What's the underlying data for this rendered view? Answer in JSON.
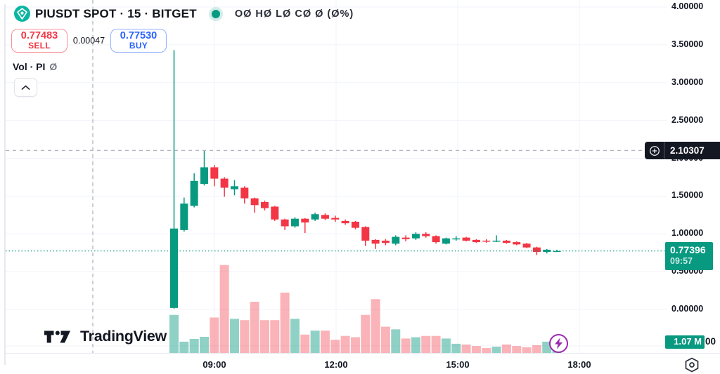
{
  "header": {
    "symbol_title": "PIUSDT SPOT · 15 · BITGET",
    "ohlc_legend": "OØ HØ LØ CØ Ø (Ø%)",
    "sell_button": {
      "price": "0.77483",
      "label": "SELL"
    },
    "spread": "0.00047",
    "buy_button": {
      "price": "0.77530",
      "label": "BUY"
    },
    "volume_row": {
      "label": "Vol · PI",
      "value": "Ø"
    }
  },
  "price_axis": {
    "labels": [
      "4.00000",
      "3.50000",
      "3.00000",
      "2.50000",
      "2.00000",
      "1.50000",
      "1.00000",
      "0.50000",
      "0.00000"
    ],
    "crosshair_label": "2.10307",
    "last_price_label": {
      "price": "0.77396",
      "countdown": "09:57"
    },
    "volume_label": "1.07 M",
    "partial_text": "00"
  },
  "time_axis": {
    "labels": [
      "09:00",
      "12:00",
      "15:00",
      "18:00"
    ]
  },
  "branding": {
    "logo_text": "TradingView"
  },
  "colors": {
    "up": "#089981",
    "down": "#f23645",
    "vol_up": "rgba(8,153,129,0.45)",
    "vol_down": "rgba(242,54,69,0.38)",
    "buy_accent": "#2962ff",
    "sell_accent": "#f23645",
    "dark_label_bg": "#131722",
    "grid": "#f0f3fa",
    "crosshair": "#b2b5be",
    "flash_purple": "#9c27b0"
  },
  "chart_data": {
    "type": "candlestick",
    "title": "PIUSDT SPOT · 15 · BITGET",
    "ylim": [
      0,
      4.0
    ],
    "price_gridlines": [
      4.0,
      3.5,
      3.0,
      2.5,
      2.0,
      1.5,
      1.0,
      0.5,
      0.0
    ],
    "crosshair_price": 2.10307,
    "last_price": 0.77396,
    "x_tick_labels": [
      "09:00",
      "12:00",
      "15:00",
      "18:00"
    ],
    "candles": [
      [
        0.02,
        3.43,
        0.01,
        1.07
      ],
      [
        1.05,
        1.48,
        1.03,
        1.4
      ],
      [
        1.37,
        1.8,
        1.35,
        1.7
      ],
      [
        1.66,
        2.1,
        1.64,
        1.88
      ],
      [
        1.88,
        1.91,
        1.63,
        1.73
      ],
      [
        1.73,
        1.75,
        1.49,
        1.61
      ],
      [
        1.59,
        1.71,
        1.51,
        1.63
      ],
      [
        1.61,
        1.63,
        1.4,
        1.47
      ],
      [
        1.47,
        1.48,
        1.28,
        1.38
      ],
      [
        1.42,
        1.44,
        1.31,
        1.34
      ],
      [
        1.36,
        1.37,
        1.17,
        1.19
      ],
      [
        1.19,
        1.2,
        1.05,
        1.1
      ],
      [
        1.1,
        1.22,
        1.08,
        1.2
      ],
      [
        1.2,
        1.21,
        1.01,
        1.15
      ],
      [
        1.19,
        1.28,
        1.17,
        1.26
      ],
      [
        1.25,
        1.27,
        1.18,
        1.2
      ],
      [
        1.21,
        1.24,
        1.16,
        1.19
      ],
      [
        1.17,
        1.19,
        1.12,
        1.14
      ],
      [
        1.16,
        1.17,
        1.06,
        1.08
      ],
      [
        1.09,
        1.1,
        0.84,
        0.91
      ],
      [
        0.92,
        0.93,
        0.8,
        0.87
      ],
      [
        0.91,
        0.93,
        0.85,
        0.88
      ],
      [
        0.87,
        0.98,
        0.85,
        0.96
      ],
      [
        0.95,
        0.98,
        0.9,
        0.93
      ],
      [
        0.94,
        1.02,
        0.92,
        1.0
      ],
      [
        1.0,
        1.02,
        0.95,
        0.97
      ],
      [
        0.97,
        0.98,
        0.87,
        0.89
      ],
      [
        0.87,
        0.95,
        0.86,
        0.94
      ],
      [
        0.93,
        0.97,
        0.91,
        0.94
      ],
      [
        0.95,
        0.96,
        0.9,
        0.91
      ],
      [
        0.92,
        0.93,
        0.88,
        0.89
      ],
      [
        0.91,
        0.93,
        0.88,
        0.9
      ],
      [
        0.9,
        0.98,
        0.89,
        0.91
      ],
      [
        0.91,
        0.92,
        0.87,
        0.88
      ],
      [
        0.89,
        0.9,
        0.85,
        0.86
      ],
      [
        0.87,
        0.88,
        0.81,
        0.82
      ],
      [
        0.82,
        0.83,
        0.72,
        0.76
      ],
      [
        0.76,
        0.8,
        0.74,
        0.79
      ],
      [
        0.77,
        0.79,
        0.76,
        0.774
      ]
    ],
    "volumes_m": [
      2.9,
      0.86,
      1.07,
      1.23,
      2.7,
      6.7,
      2.6,
      2.5,
      3.9,
      2.5,
      2.5,
      4.6,
      2.6,
      1.4,
      1.7,
      1.7,
      1.0,
      1.3,
      1.2,
      2.9,
      4.1,
      2.0,
      1.8,
      1.1,
      1.2,
      1.3,
      1.3,
      1.1,
      0.7,
      0.64,
      0.53,
      0.37,
      0.48,
      0.64,
      0.53,
      0.43,
      0.59,
      0.86,
      1.07
    ],
    "volume_unit": "M"
  }
}
